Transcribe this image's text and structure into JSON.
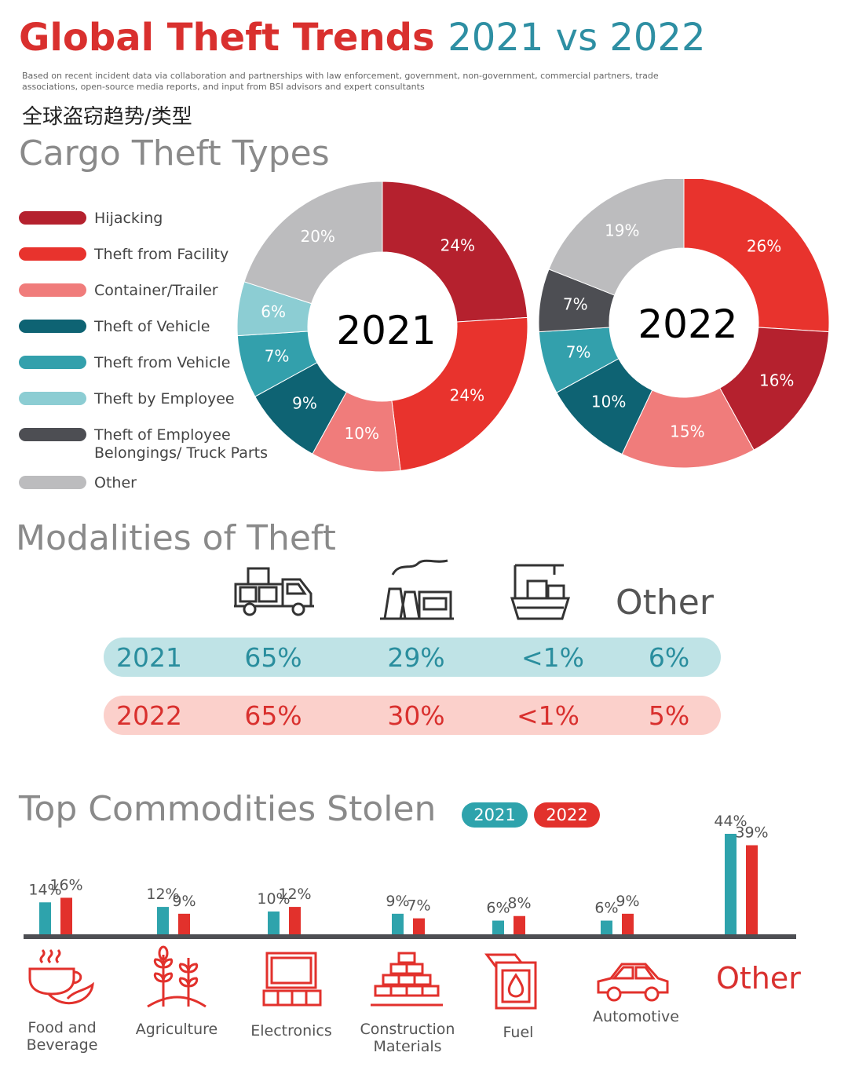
{
  "header": {
    "title_part1": "Global Theft Trends",
    "title_part2": "2021 vs 2022",
    "subtitle": "Based on recent incident data via collaboration and partnerships with law enforcement, government, non-government, commercial partners, trade associations, open-source media reports, and input from BSI advisors and expert consultants",
    "chinese_subtitle": "全球盗窃趋势/类型"
  },
  "colors": {
    "hijacking": "#b5212e",
    "theft_from_facility": "#e8332d",
    "container_trailer": "#f07c7b",
    "theft_of_vehicle": "#0e6373",
    "theft_from_vehicle": "#33a0ac",
    "theft_by_employee": "#8ccdd3",
    "theft_of_employee_belongings": "#4d4e53",
    "other": "#bcbcbe",
    "teal": "#2ea3ac",
    "red": "#e2312c"
  },
  "sections": {
    "cargo": "Cargo Theft Types",
    "modalities": "Modalities of Theft",
    "commodities": "Top Commodities Stolen"
  },
  "modalities": {
    "other_label": "Other",
    "icons": [
      "truck-icon",
      "factory-icon",
      "ship-icon"
    ],
    "rows": [
      {
        "year": "2021",
        "values": [
          "65%",
          "29%",
          "<1%",
          "6%"
        ]
      },
      {
        "year": "2022",
        "values": [
          "65%",
          "30%",
          "<1%",
          "5%"
        ]
      }
    ]
  },
  "commodity_labels": {
    "other_big": "Other"
  },
  "chart_data": [
    {
      "type": "pie",
      "center_label": "2021",
      "legend": [
        "Hijacking",
        "Theft from Facility",
        "Container/Trailer",
        "Theft of Vehicle",
        "Theft from Vehicle",
        "Theft by Employee",
        "Theft of Employee Belongings/ Truck Parts",
        "Other"
      ],
      "slices": [
        {
          "name": "Hijacking",
          "value": 24,
          "label": "24%"
        },
        {
          "name": "Theft from Facility",
          "value": 24,
          "label": "24%"
        },
        {
          "name": "Container/Trailer",
          "value": 10,
          "label": "10%"
        },
        {
          "name": "Theft of Vehicle",
          "value": 9,
          "label": "9%"
        },
        {
          "name": "Theft from Vehicle",
          "value": 7,
          "label": "7%"
        },
        {
          "name": "Theft by Employee",
          "value": 6,
          "label": "6%"
        },
        {
          "name": "Other",
          "value": 20,
          "label": "20%"
        }
      ]
    },
    {
      "type": "pie",
      "center_label": "2022",
      "slices": [
        {
          "name": "Theft from Facility",
          "value": 26,
          "label": "26%"
        },
        {
          "name": "Hijacking",
          "value": 16,
          "label": "16%"
        },
        {
          "name": "Container/Trailer",
          "value": 15,
          "label": "15%"
        },
        {
          "name": "Theft of Vehicle",
          "value": 10,
          "label": "10%"
        },
        {
          "name": "Theft from Vehicle",
          "value": 7,
          "label": "7%"
        },
        {
          "name": "Theft of Employee Belongings/ Truck Parts",
          "value": 7,
          "label": "7%"
        },
        {
          "name": "Other",
          "value": 19,
          "label": "19%"
        }
      ]
    },
    {
      "type": "bar",
      "categories": [
        "Food and Beverage",
        "Agriculture",
        "Electronics",
        "Construction Materials",
        "Fuel",
        "Automotive",
        "Other"
      ],
      "series": [
        {
          "name": "2021",
          "values": [
            14,
            12,
            10,
            9,
            6,
            6,
            44
          ]
        },
        {
          "name": "2022",
          "values": [
            16,
            9,
            12,
            7,
            8,
            9,
            39
          ]
        }
      ],
      "ylim": [
        0,
        44
      ]
    }
  ]
}
